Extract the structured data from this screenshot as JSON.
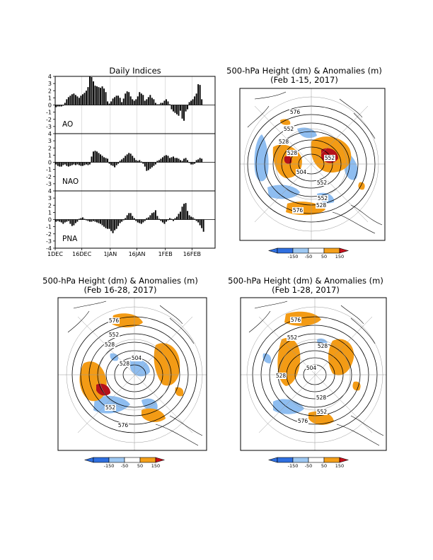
{
  "indices_panel": {
    "title": "Daily Indices",
    "x_tick_labels": [
      "1DEC",
      "16DEC",
      "1JAN",
      "16JAN",
      "1FEB",
      "16FEB"
    ],
    "y_tick_labels": [
      "4",
      "3",
      "2",
      "1",
      "0",
      "-1",
      "-2",
      "-3",
      "-4"
    ]
  },
  "map_panels": [
    {
      "title_line1": "500-hPa Height (dm) & Anomalies (m)",
      "title_line2": "(Feb 1-15, 2017)",
      "contour_labels": [
        "576",
        "552",
        "528",
        "504",
        "528",
        "552",
        "552",
        "528",
        "552",
        "576"
      ]
    },
    {
      "title_line1": "500-hPa Height (dm) & Anomalies (m)",
      "title_line2": "(Feb 16-28, 2017)",
      "contour_labels": [
        "576",
        "552",
        "528",
        "504",
        "528",
        "552",
        "576"
      ]
    },
    {
      "title_line1": "500-hPa Height (dm) & Anomalies (m)",
      "title_line2": "(Feb 1-28, 2017)",
      "contour_labels": [
        "576",
        "552",
        "528",
        "504",
        "528",
        "528",
        "552",
        "576"
      ]
    }
  ],
  "colorbar": {
    "labels": [
      "-150",
      "-50",
      "50",
      "150"
    ],
    "colors": [
      "#2f6fe0",
      "#9ec8f2",
      "#ffffff",
      "#f4a01a",
      "#c8101a"
    ]
  },
  "colors": {
    "negative_anomaly": "#8ebdf0",
    "positive_anomaly": "#f39b15",
    "strong_positive": "#b5121b",
    "bars": "#000000"
  },
  "chart_data": [
    {
      "type": "bar",
      "title": "Daily Indices",
      "name": "AO",
      "x_start": "1DEC",
      "ylim": [
        -4,
        4
      ],
      "ylabel": "",
      "values": [
        -0.3,
        -0.2,
        -0.2,
        -0.2,
        -0.1,
        0.3,
        0.8,
        1.1,
        1.3,
        1.5,
        1.6,
        1.4,
        1.2,
        1.0,
        1.3,
        1.5,
        1.7,
        2.0,
        2.5,
        4.0,
        3.9,
        3.3,
        2.7,
        2.6,
        2.5,
        2.4,
        2.6,
        2.3,
        1.8,
        0.5,
        0.2,
        0.5,
        0.9,
        1.1,
        1.3,
        1.3,
        1.0,
        0.4,
        0.9,
        1.6,
        1.9,
        1.8,
        1.2,
        0.8,
        0.6,
        0.8,
        1.2,
        1.8,
        1.6,
        1.4,
        0.6,
        0.8,
        1.1,
        1.4,
        1.0,
        0.8,
        0.3,
        0.1,
        0.1,
        0.3,
        0.3,
        0.6,
        0.8,
        0.5,
        0.1,
        -0.6,
        -0.9,
        -1.1,
        -1.3,
        -1.5,
        -0.8,
        -1.9,
        -2.2,
        -0.9,
        -0.6,
        0.4,
        0.6,
        0.8,
        1.2,
        1.6,
        2.9,
        2.8,
        0.8,
        0.0,
        0.0,
        0.0,
        0.0,
        0.0,
        0.0
      ]
    },
    {
      "type": "bar",
      "name": "NAO",
      "x_start": "1DEC",
      "ylim": [
        -4,
        4
      ],
      "values": [
        -0.3,
        -0.5,
        -0.6,
        -0.6,
        -0.4,
        -0.3,
        -0.5,
        -0.6,
        -0.5,
        -0.4,
        -0.3,
        -0.4,
        -0.3,
        -0.4,
        -0.5,
        -0.5,
        -0.4,
        -0.3,
        -0.4,
        -0.3,
        0.8,
        1.5,
        1.6,
        1.5,
        1.3,
        1.1,
        0.9,
        0.7,
        0.6,
        0.5,
        -0.2,
        -0.4,
        -0.5,
        -0.7,
        -0.4,
        -0.2,
        0.2,
        0.4,
        0.6,
        0.9,
        1.1,
        1.3,
        1.2,
        0.9,
        0.6,
        0.3,
        0.2,
        0.3,
        0.1,
        -0.2,
        -0.6,
        -1.2,
        -1.1,
        -0.9,
        -0.7,
        -0.5,
        -0.3,
        0.2,
        0.3,
        0.5,
        0.7,
        0.9,
        1.0,
        0.9,
        0.6,
        0.7,
        0.8,
        0.6,
        0.6,
        0.5,
        0.3,
        0.2,
        0.5,
        0.6,
        0.3,
        -0.1,
        -0.3,
        -0.3,
        -0.2,
        0.3,
        0.4,
        0.6,
        0.5,
        0.0,
        0.0,
        0.0,
        0.0,
        0.0,
        0.0
      ]
    },
    {
      "type": "bar",
      "name": "PNA",
      "x_start": "1DEC",
      "x_tick_labels": [
        "1DEC",
        "16DEC",
        "1JAN",
        "16JAN",
        "1FEB",
        "16FEB"
      ],
      "ylim": [
        -4,
        4
      ],
      "values": [
        -0.3,
        -0.2,
        -0.3,
        -0.4,
        -0.6,
        -0.4,
        -0.3,
        -0.2,
        -0.6,
        -0.9,
        -0.8,
        -0.5,
        -0.3,
        0.1,
        0.2,
        0.3,
        0.1,
        -0.1,
        -0.2,
        -0.3,
        -0.3,
        -0.2,
        -0.3,
        -0.4,
        -0.5,
        -0.6,
        -0.8,
        -1.0,
        -1.2,
        -1.3,
        -1.3,
        -1.6,
        -1.9,
        -1.5,
        -1.3,
        -0.9,
        -0.5,
        -0.3,
        -0.1,
        0.2,
        0.6,
        0.9,
        0.9,
        0.5,
        0.2,
        -0.2,
        -0.4,
        -0.5,
        -0.6,
        -0.4,
        -0.2,
        0.2,
        0.3,
        0.6,
        0.9,
        1.0,
        1.3,
        0.5,
        0.1,
        -0.2,
        -0.4,
        -0.6,
        -0.3,
        -0.1,
        0.2,
        0.1,
        -0.2,
        0.2,
        0.4,
        0.8,
        1.1,
        1.8,
        2.2,
        2.3,
        1.2,
        0.6,
        0.4,
        0.3,
        0.1,
        -0.2,
        -0.4,
        -0.8,
        -1.2,
        -1.7,
        0.0,
        0.0,
        0.0,
        0.0,
        0.0
      ]
    }
  ]
}
